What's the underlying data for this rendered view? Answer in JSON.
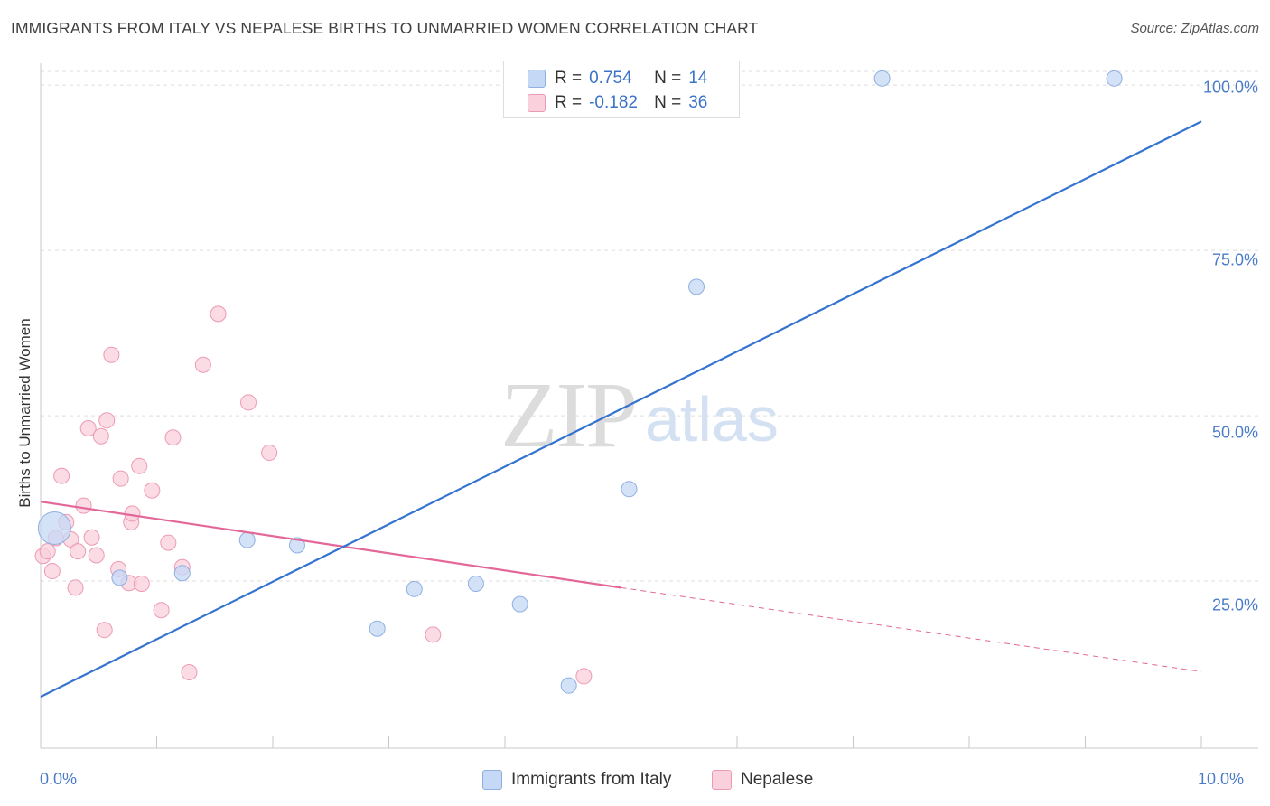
{
  "title": "IMMIGRANTS FROM ITALY VS NEPALESE BIRTHS TO UNMARRIED WOMEN CORRELATION CHART",
  "source": "Source: ZipAtlas.com",
  "watermark": {
    "part1": "ZIP",
    "part2": "atlas"
  },
  "colors": {
    "italy_fill": "#c5d8f5",
    "italy_stroke": "#8fb0e0",
    "italy_line": "#3474d0",
    "nepal_fill": "#f9d0dc",
    "nepal_stroke": "#ec9ab3",
    "nepal_line": "#e4679a",
    "tick_text": "#4a7cc9",
    "grid": "#dddddd"
  },
  "legend": {
    "rows": [
      {
        "r_label": "R =",
        "r_value": "0.754",
        "n_label": "N =",
        "n_value": "14"
      },
      {
        "r_label": "R =",
        "r_value": "-0.182",
        "n_label": "N =",
        "n_value": "36"
      }
    ]
  },
  "bottom_legend": {
    "italy": "Immigrants from Italy",
    "nepal": "Nepalese"
  },
  "chart_data": {
    "type": "scatter",
    "title": "IMMIGRANTS FROM ITALY VS NEPALESE BIRTHS TO UNMARRIED WOMEN CORRELATION CHART",
    "xlabel": "",
    "ylabel": "Births to Unmarried Women",
    "xlim": [
      0,
      10
    ],
    "ylim": [
      0,
      102
    ],
    "x_tick_labels": [
      "0.0%",
      "10.0%"
    ],
    "y_ticks": [
      25,
      50,
      75,
      100
    ],
    "y_tick_labels": [
      "25.0%",
      "50.0%",
      "75.0%",
      "100.0%"
    ],
    "grid": true,
    "series": [
      {
        "name": "Immigrants from Italy",
        "r": 0.754,
        "n": 14,
        "points": [
          {
            "x": 0.12,
            "y": 33.0,
            "big": true
          },
          {
            "x": 0.68,
            "y": 25.5
          },
          {
            "x": 1.22,
            "y": 26.2
          },
          {
            "x": 1.78,
            "y": 31.2
          },
          {
            "x": 2.21,
            "y": 30.4
          },
          {
            "x": 2.9,
            "y": 17.8
          },
          {
            "x": 3.22,
            "y": 23.8
          },
          {
            "x": 3.75,
            "y": 24.6
          },
          {
            "x": 4.13,
            "y": 21.5
          },
          {
            "x": 4.55,
            "y": 9.2
          },
          {
            "x": 5.07,
            "y": 38.9
          },
          {
            "x": 5.65,
            "y": 69.5
          },
          {
            "x": 7.25,
            "y": 101.0
          },
          {
            "x": 9.25,
            "y": 101.0
          }
        ],
        "trend": {
          "x0": 0.0,
          "y0": 7.5,
          "x1": 10.0,
          "y1": 94.5
        }
      },
      {
        "name": "Nepalese",
        "r": -0.182,
        "n": 36,
        "points": [
          {
            "x": 0.02,
            "y": 28.8
          },
          {
            "x": 0.06,
            "y": 29.5
          },
          {
            "x": 0.1,
            "y": 26.5
          },
          {
            "x": 0.13,
            "y": 31.5
          },
          {
            "x": 0.18,
            "y": 40.9
          },
          {
            "x": 0.22,
            "y": 33.9
          },
          {
            "x": 0.26,
            "y": 31.3
          },
          {
            "x": 0.3,
            "y": 24.0
          },
          {
            "x": 0.32,
            "y": 29.5
          },
          {
            "x": 0.37,
            "y": 36.4
          },
          {
            "x": 0.41,
            "y": 48.1
          },
          {
            "x": 0.44,
            "y": 31.6
          },
          {
            "x": 0.48,
            "y": 28.9
          },
          {
            "x": 0.52,
            "y": 46.9
          },
          {
            "x": 0.55,
            "y": 17.6
          },
          {
            "x": 0.57,
            "y": 49.3
          },
          {
            "x": 0.61,
            "y": 59.2
          },
          {
            "x": 0.67,
            "y": 26.8
          },
          {
            "x": 0.69,
            "y": 40.5
          },
          {
            "x": 0.76,
            "y": 24.7
          },
          {
            "x": 0.78,
            "y": 33.9
          },
          {
            "x": 0.79,
            "y": 35.2
          },
          {
            "x": 0.85,
            "y": 42.4
          },
          {
            "x": 0.87,
            "y": 24.6
          },
          {
            "x": 0.96,
            "y": 38.7
          },
          {
            "x": 1.04,
            "y": 20.6
          },
          {
            "x": 1.1,
            "y": 30.8
          },
          {
            "x": 1.14,
            "y": 46.7
          },
          {
            "x": 1.22,
            "y": 27.1
          },
          {
            "x": 1.28,
            "y": 11.2
          },
          {
            "x": 1.4,
            "y": 57.7
          },
          {
            "x": 1.53,
            "y": 65.4
          },
          {
            "x": 1.79,
            "y": 52.0
          },
          {
            "x": 1.97,
            "y": 44.4
          },
          {
            "x": 3.38,
            "y": 16.9
          },
          {
            "x": 4.68,
            "y": 10.6
          }
        ],
        "trend": {
          "x0": 0.0,
          "y0": 37.0,
          "x1": 5.0,
          "y1": 24.0,
          "dash_x1": 10.0,
          "dash_y1": 11.3
        }
      }
    ]
  }
}
